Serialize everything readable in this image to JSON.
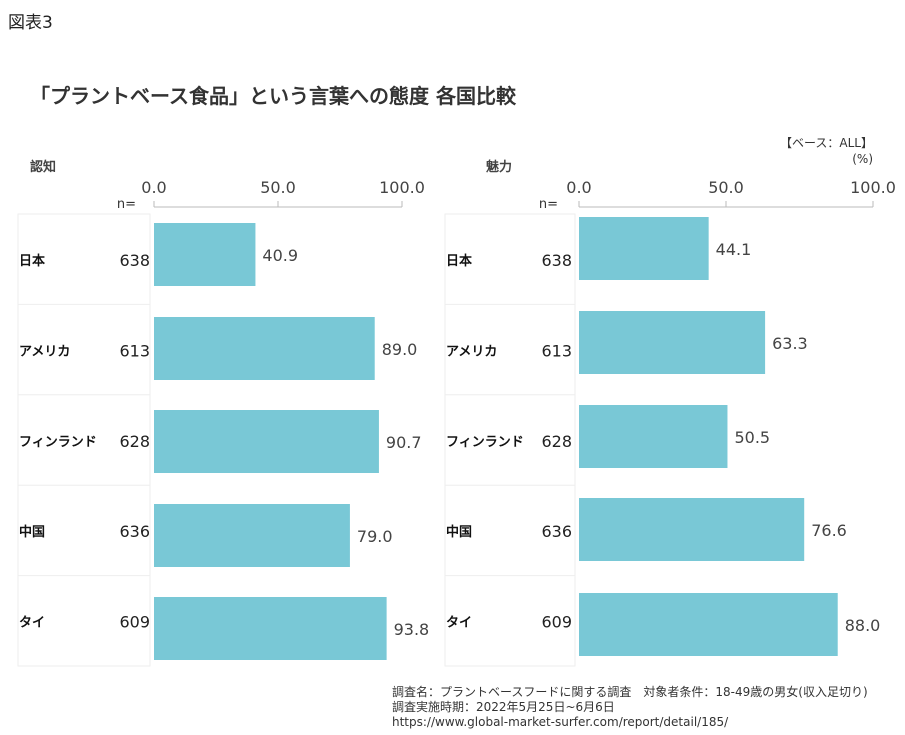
{
  "figure_label": "図表3",
  "title": "「プラントベース食品」という言葉への態度 各国比較",
  "base_note": "【ベース：ALL】",
  "unit": "(%)",
  "n_label": "n=",
  "footnotes": [
    "調査名：プラントベースフードに関する調査　対象者条件：18-49歳の男女(収入足切り)",
    "調査実施時期：2022年5月25日~6月6日",
    "https://www.global-market-surfer.com/report/detail/185/"
  ],
  "chart_data": [
    {
      "type": "bar",
      "orientation": "horizontal",
      "subtitle": "認知",
      "categories": [
        "日本",
        "アメリカ",
        "フィンランド",
        "中国",
        "タイ"
      ],
      "n": [
        638,
        613,
        628,
        636,
        609
      ],
      "values": [
        40.9,
        89.0,
        90.7,
        79.0,
        93.8
      ],
      "xlim": [
        0,
        100
      ],
      "ticks": [
        "0.0",
        "50.0",
        "100.0"
      ],
      "color": "#79c8d6"
    },
    {
      "type": "bar",
      "orientation": "horizontal",
      "subtitle": "魅力",
      "categories": [
        "日本",
        "アメリカ",
        "フィンランド",
        "中国",
        "タイ"
      ],
      "n": [
        638,
        613,
        628,
        636,
        609
      ],
      "values": [
        44.1,
        63.3,
        50.5,
        76.6,
        88.0
      ],
      "xlim": [
        0,
        100
      ],
      "ticks": [
        "0.0",
        "50.0",
        "100.0"
      ],
      "color": "#79c8d6"
    }
  ]
}
